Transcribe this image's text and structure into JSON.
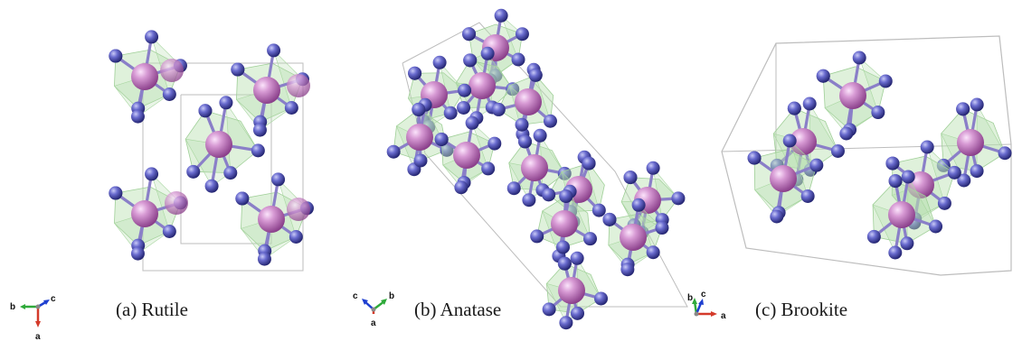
{
  "captions": {
    "rutile": "(a) Rutile",
    "anatase": "(b) Anatase",
    "brookite": "(c) Brookite"
  },
  "axes": {
    "rutile": {
      "x": "b",
      "y": "c",
      "z": "a"
    },
    "anatase": {
      "x": "c",
      "y": "b",
      "z": "a"
    },
    "brookite": {
      "x": "b",
      "y": "c",
      "z": "a"
    }
  },
  "colors": {
    "ti_atom": "#c77fc3",
    "o_atom": "#5a5cc0",
    "polyhedron_fill": "#b7dfb0",
    "bond": "#8a7fc8",
    "cell_edge": "#bdbdbd",
    "axis_a": "#d43a2a",
    "axis_b": "#2faa3a",
    "axis_c": "#1e3fd0"
  }
}
